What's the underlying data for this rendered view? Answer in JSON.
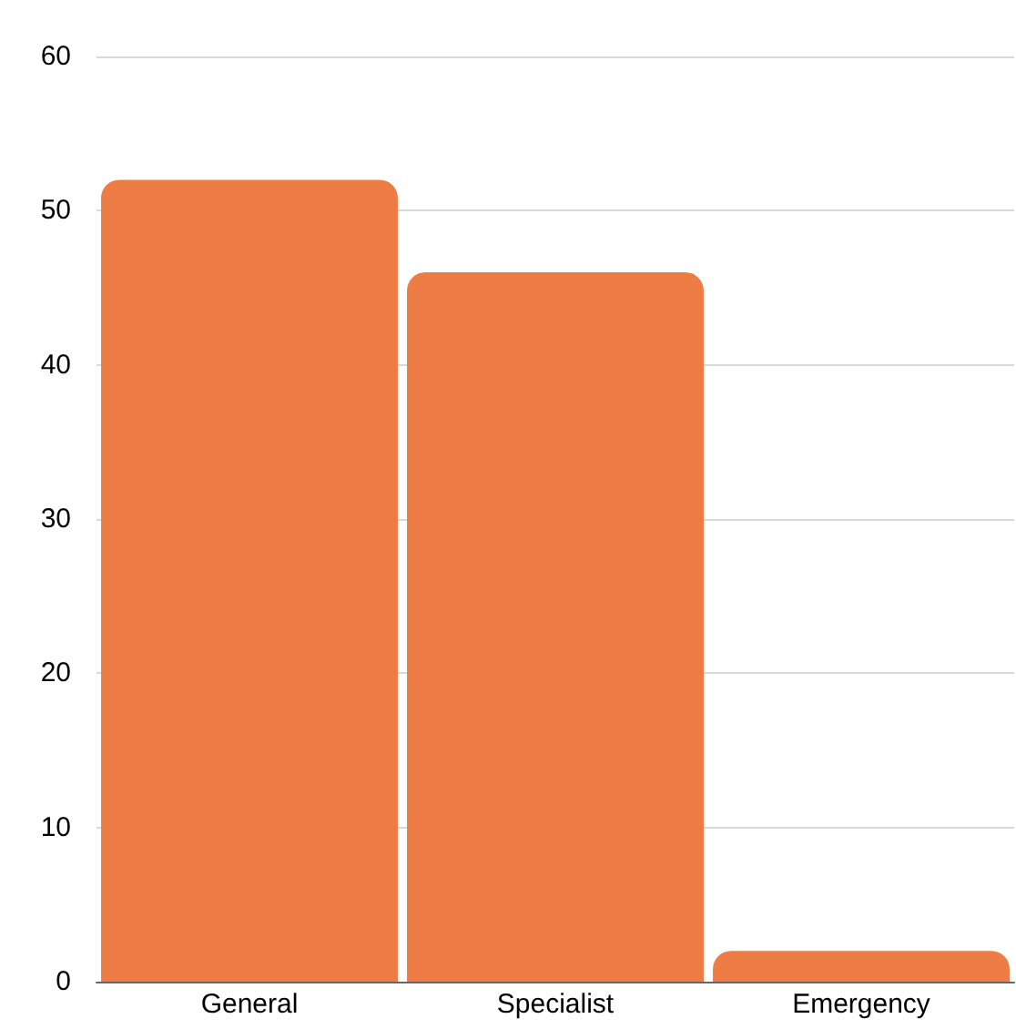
{
  "chart_data": {
    "type": "bar",
    "categories": [
      "General",
      "Specialist",
      "Emergency"
    ],
    "values": [
      52,
      46,
      2
    ],
    "color": "#ed7d45",
    "ylim": [
      0,
      60
    ],
    "yticks": [
      0,
      10,
      20,
      30,
      40,
      50,
      60
    ],
    "grid": "y"
  }
}
